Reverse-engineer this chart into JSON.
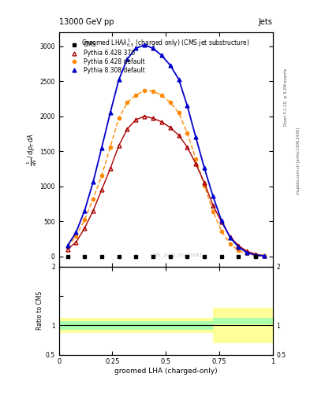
{
  "title_top": "13000 GeV pp",
  "title_right": "Jets",
  "xlabel": "groomed LHA (charged-only)",
  "right_label": "Rivet 3.1.10, ≥ 3.2M events",
  "watermark": "CMS_2021_I1920187",
  "mcp_label": "mcplots.cern.ch [arXiv:1306.3436]",
  "cms_x": [
    0.04,
    0.12,
    0.2,
    0.28,
    0.36,
    0.44,
    0.52,
    0.6,
    0.68,
    0.76,
    0.84,
    0.92
  ],
  "cms_y": [
    0.0,
    0.0,
    0.0,
    0.0,
    0.0,
    0.0,
    0.0,
    0.0,
    0.0,
    0.0,
    0.0,
    0.0
  ],
  "py6_370_x": [
    0.04,
    0.08,
    0.12,
    0.16,
    0.2,
    0.24,
    0.28,
    0.32,
    0.36,
    0.4,
    0.44,
    0.48,
    0.52,
    0.56,
    0.6,
    0.64,
    0.68,
    0.72,
    0.76,
    0.8,
    0.84,
    0.88,
    0.92,
    0.96
  ],
  "py6_370_y": [
    100,
    200,
    400,
    650,
    950,
    1250,
    1580,
    1820,
    1950,
    2000,
    1970,
    1920,
    1840,
    1730,
    1560,
    1320,
    1050,
    730,
    490,
    280,
    150,
    70,
    30,
    8
  ],
  "py6_def_x": [
    0.04,
    0.08,
    0.12,
    0.16,
    0.2,
    0.24,
    0.28,
    0.32,
    0.36,
    0.4,
    0.44,
    0.48,
    0.52,
    0.56,
    0.6,
    0.64,
    0.68,
    0.72,
    0.76,
    0.8,
    0.84,
    0.88,
    0.92,
    0.96
  ],
  "py6_def_y": [
    130,
    290,
    520,
    820,
    1150,
    1560,
    1970,
    2200,
    2300,
    2370,
    2360,
    2300,
    2200,
    2050,
    1760,
    1390,
    1010,
    640,
    360,
    175,
    80,
    35,
    12,
    3
  ],
  "py8_def_x": [
    0.04,
    0.08,
    0.12,
    0.16,
    0.2,
    0.24,
    0.28,
    0.32,
    0.36,
    0.4,
    0.44,
    0.48,
    0.52,
    0.56,
    0.6,
    0.64,
    0.68,
    0.72,
    0.76,
    0.8,
    0.84,
    0.88,
    0.92,
    0.96
  ],
  "py8_def_y": [
    150,
    340,
    650,
    1060,
    1550,
    2050,
    2520,
    2820,
    2970,
    3020,
    2970,
    2870,
    2730,
    2530,
    2150,
    1700,
    1260,
    860,
    510,
    270,
    130,
    50,
    15,
    4
  ],
  "ratio_x_edges": [
    0.0,
    0.08,
    0.16,
    0.24,
    0.32,
    0.4,
    0.48,
    0.56,
    0.64,
    0.72,
    0.8,
    0.88,
    0.96,
    1.0
  ],
  "ratio_green_lo": [
    0.93,
    0.93,
    0.93,
    0.93,
    0.93,
    0.93,
    0.93,
    0.93,
    0.93,
    1.02,
    1.02,
    1.02,
    1.02
  ],
  "ratio_green_hi": [
    1.07,
    1.07,
    1.07,
    1.07,
    1.07,
    1.07,
    1.07,
    1.07,
    1.07,
    1.12,
    1.12,
    1.12,
    1.12
  ],
  "ratio_yellow_lo": [
    0.87,
    0.87,
    0.87,
    0.87,
    0.87,
    0.87,
    0.87,
    0.87,
    0.87,
    0.7,
    0.7,
    0.7,
    0.7
  ],
  "ratio_yellow_hi": [
    1.13,
    1.13,
    1.13,
    1.13,
    1.13,
    1.13,
    1.13,
    1.13,
    1.13,
    1.3,
    1.3,
    1.3,
    1.3
  ],
  "cms_color": "#000000",
  "py6_370_color": "#aa0000",
  "py6_def_color": "#ff8800",
  "py8_def_color": "#0000cc",
  "ylim": [
    -150,
    3200
  ],
  "xlim": [
    0,
    1
  ],
  "ratio_ylim": [
    0.5,
    2.0
  ],
  "yticks": [
    0,
    500,
    1000,
    1500,
    2000,
    2500,
    3000
  ],
  "ytick_labels": [
    "0",
    "500",
    "1000",
    "1500",
    "2000",
    "2500",
    "3000"
  ]
}
